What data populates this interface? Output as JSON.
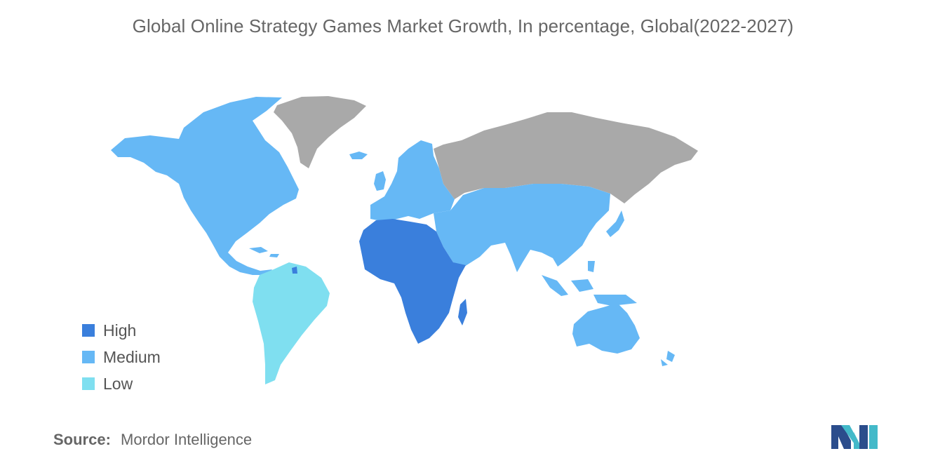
{
  "title": "Global Online Strategy Games Market Growth, In percentage, Global(2022-2027)",
  "legend": [
    {
      "label": "High",
      "color": "#3a7fdc"
    },
    {
      "label": "Medium",
      "color": "#66b8f5"
    },
    {
      "label": "Low",
      "color": "#7fdff0"
    }
  ],
  "no_data_color": "#a9a9a9",
  "regions": {
    "north_america": "Medium",
    "greenland": "no data",
    "europe": "Medium",
    "russia": "no data",
    "middle_east_asia": "Medium",
    "oceania": "Medium",
    "africa": "High",
    "south_america": "Low"
  },
  "source": {
    "label": "Source:",
    "value": "Mordor Intelligence"
  },
  "logo": "mordor-intelligence-logo"
}
